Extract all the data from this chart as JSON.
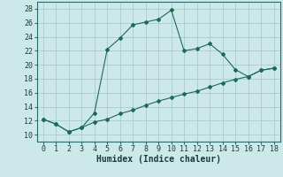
{
  "xlabel": "Humidex (Indice chaleur)",
  "xlim": [
    -0.5,
    18.5
  ],
  "ylim": [
    9,
    29
  ],
  "yticks": [
    10,
    12,
    14,
    16,
    18,
    20,
    22,
    24,
    26,
    28
  ],
  "xticks": [
    0,
    1,
    2,
    3,
    4,
    5,
    6,
    7,
    8,
    9,
    10,
    11,
    12,
    13,
    14,
    15,
    16,
    17,
    18
  ],
  "line1_x": [
    0,
    1,
    2,
    3,
    4,
    5,
    6,
    7,
    8,
    9,
    10,
    11,
    12,
    13,
    14,
    15,
    16,
    17,
    18
  ],
  "line1_y": [
    12.2,
    11.5,
    10.4,
    11.0,
    13.1,
    22.2,
    23.8,
    25.7,
    26.1,
    26.5,
    27.8,
    22.0,
    22.3,
    23.0,
    21.5,
    19.3,
    18.3,
    19.2,
    19.5
  ],
  "line2_x": [
    0,
    1,
    2,
    3,
    4,
    5,
    6,
    7,
    8,
    9,
    10,
    11,
    12,
    13,
    14,
    15,
    16,
    17,
    18
  ],
  "line2_y": [
    12.2,
    11.5,
    10.4,
    11.0,
    11.8,
    12.2,
    13.0,
    13.5,
    14.2,
    14.8,
    15.3,
    15.8,
    16.2,
    16.8,
    17.4,
    17.9,
    18.3,
    19.2,
    19.5
  ],
  "line_color": "#1a6b5a",
  "bg_color": "#cce8e8",
  "grid_color": "#aacccc",
  "tick_fontsize": 6,
  "xlabel_fontsize": 7,
  "marker_size": 2.0,
  "line_width": 0.8
}
